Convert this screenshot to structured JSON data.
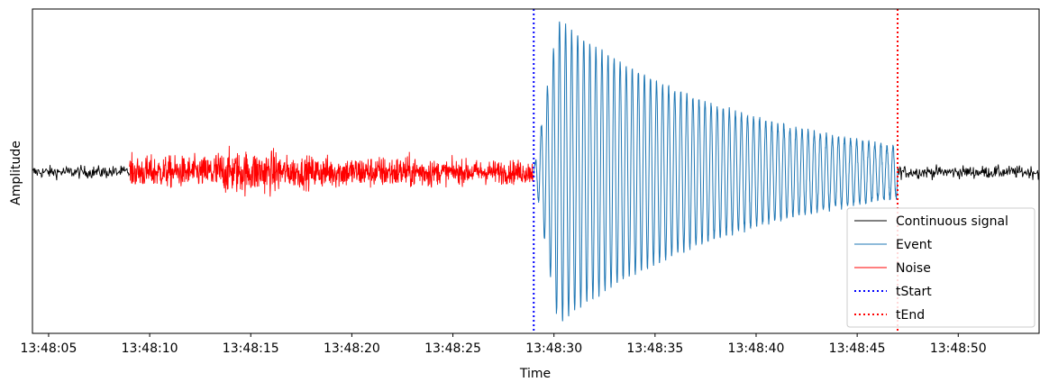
{
  "chart_data": {
    "type": "line",
    "xlabel": "Time",
    "ylabel": "Amplitude",
    "x_ticks": [
      "13:48:05",
      "13:48:10",
      "13:48:15",
      "13:48:20",
      "13:48:25",
      "13:48:30",
      "13:48:35",
      "13:48:40",
      "13:48:45",
      "13:48:50"
    ],
    "x_tick_seconds": [
      5,
      10,
      15,
      20,
      25,
      30,
      35,
      40,
      45,
      50
    ],
    "xlim_seconds": [
      4.2,
      54.0
    ],
    "ylim": [
      -1.0,
      1.0
    ],
    "y_ticks_visible": false,
    "grid": false,
    "legend_position": "lower right",
    "series": [
      {
        "name": "Continuous signal",
        "color": "#000000",
        "style": "solid",
        "segments": [
          [
            4.2,
            9.0
          ],
          [
            47.0,
            54.0
          ]
        ],
        "description_amplitude": 0.04
      },
      {
        "name": "Event",
        "color": "#1f77b4",
        "style": "solid",
        "segments": [
          [
            29.0,
            47.0
          ]
        ],
        "peak_amplitude": 0.98,
        "dominant_period_s": 0.3
      },
      {
        "name": "Noise",
        "color": "#ff0000",
        "style": "solid",
        "segments": [
          [
            9.0,
            29.0
          ]
        ],
        "description_amplitude": 0.1
      },
      {
        "name": "tStart",
        "color": "#0000ff",
        "style": "dotted",
        "x": 29.0
      },
      {
        "name": "tEnd",
        "color": "#ff0000",
        "style": "dotted",
        "x": 47.0
      }
    ]
  }
}
